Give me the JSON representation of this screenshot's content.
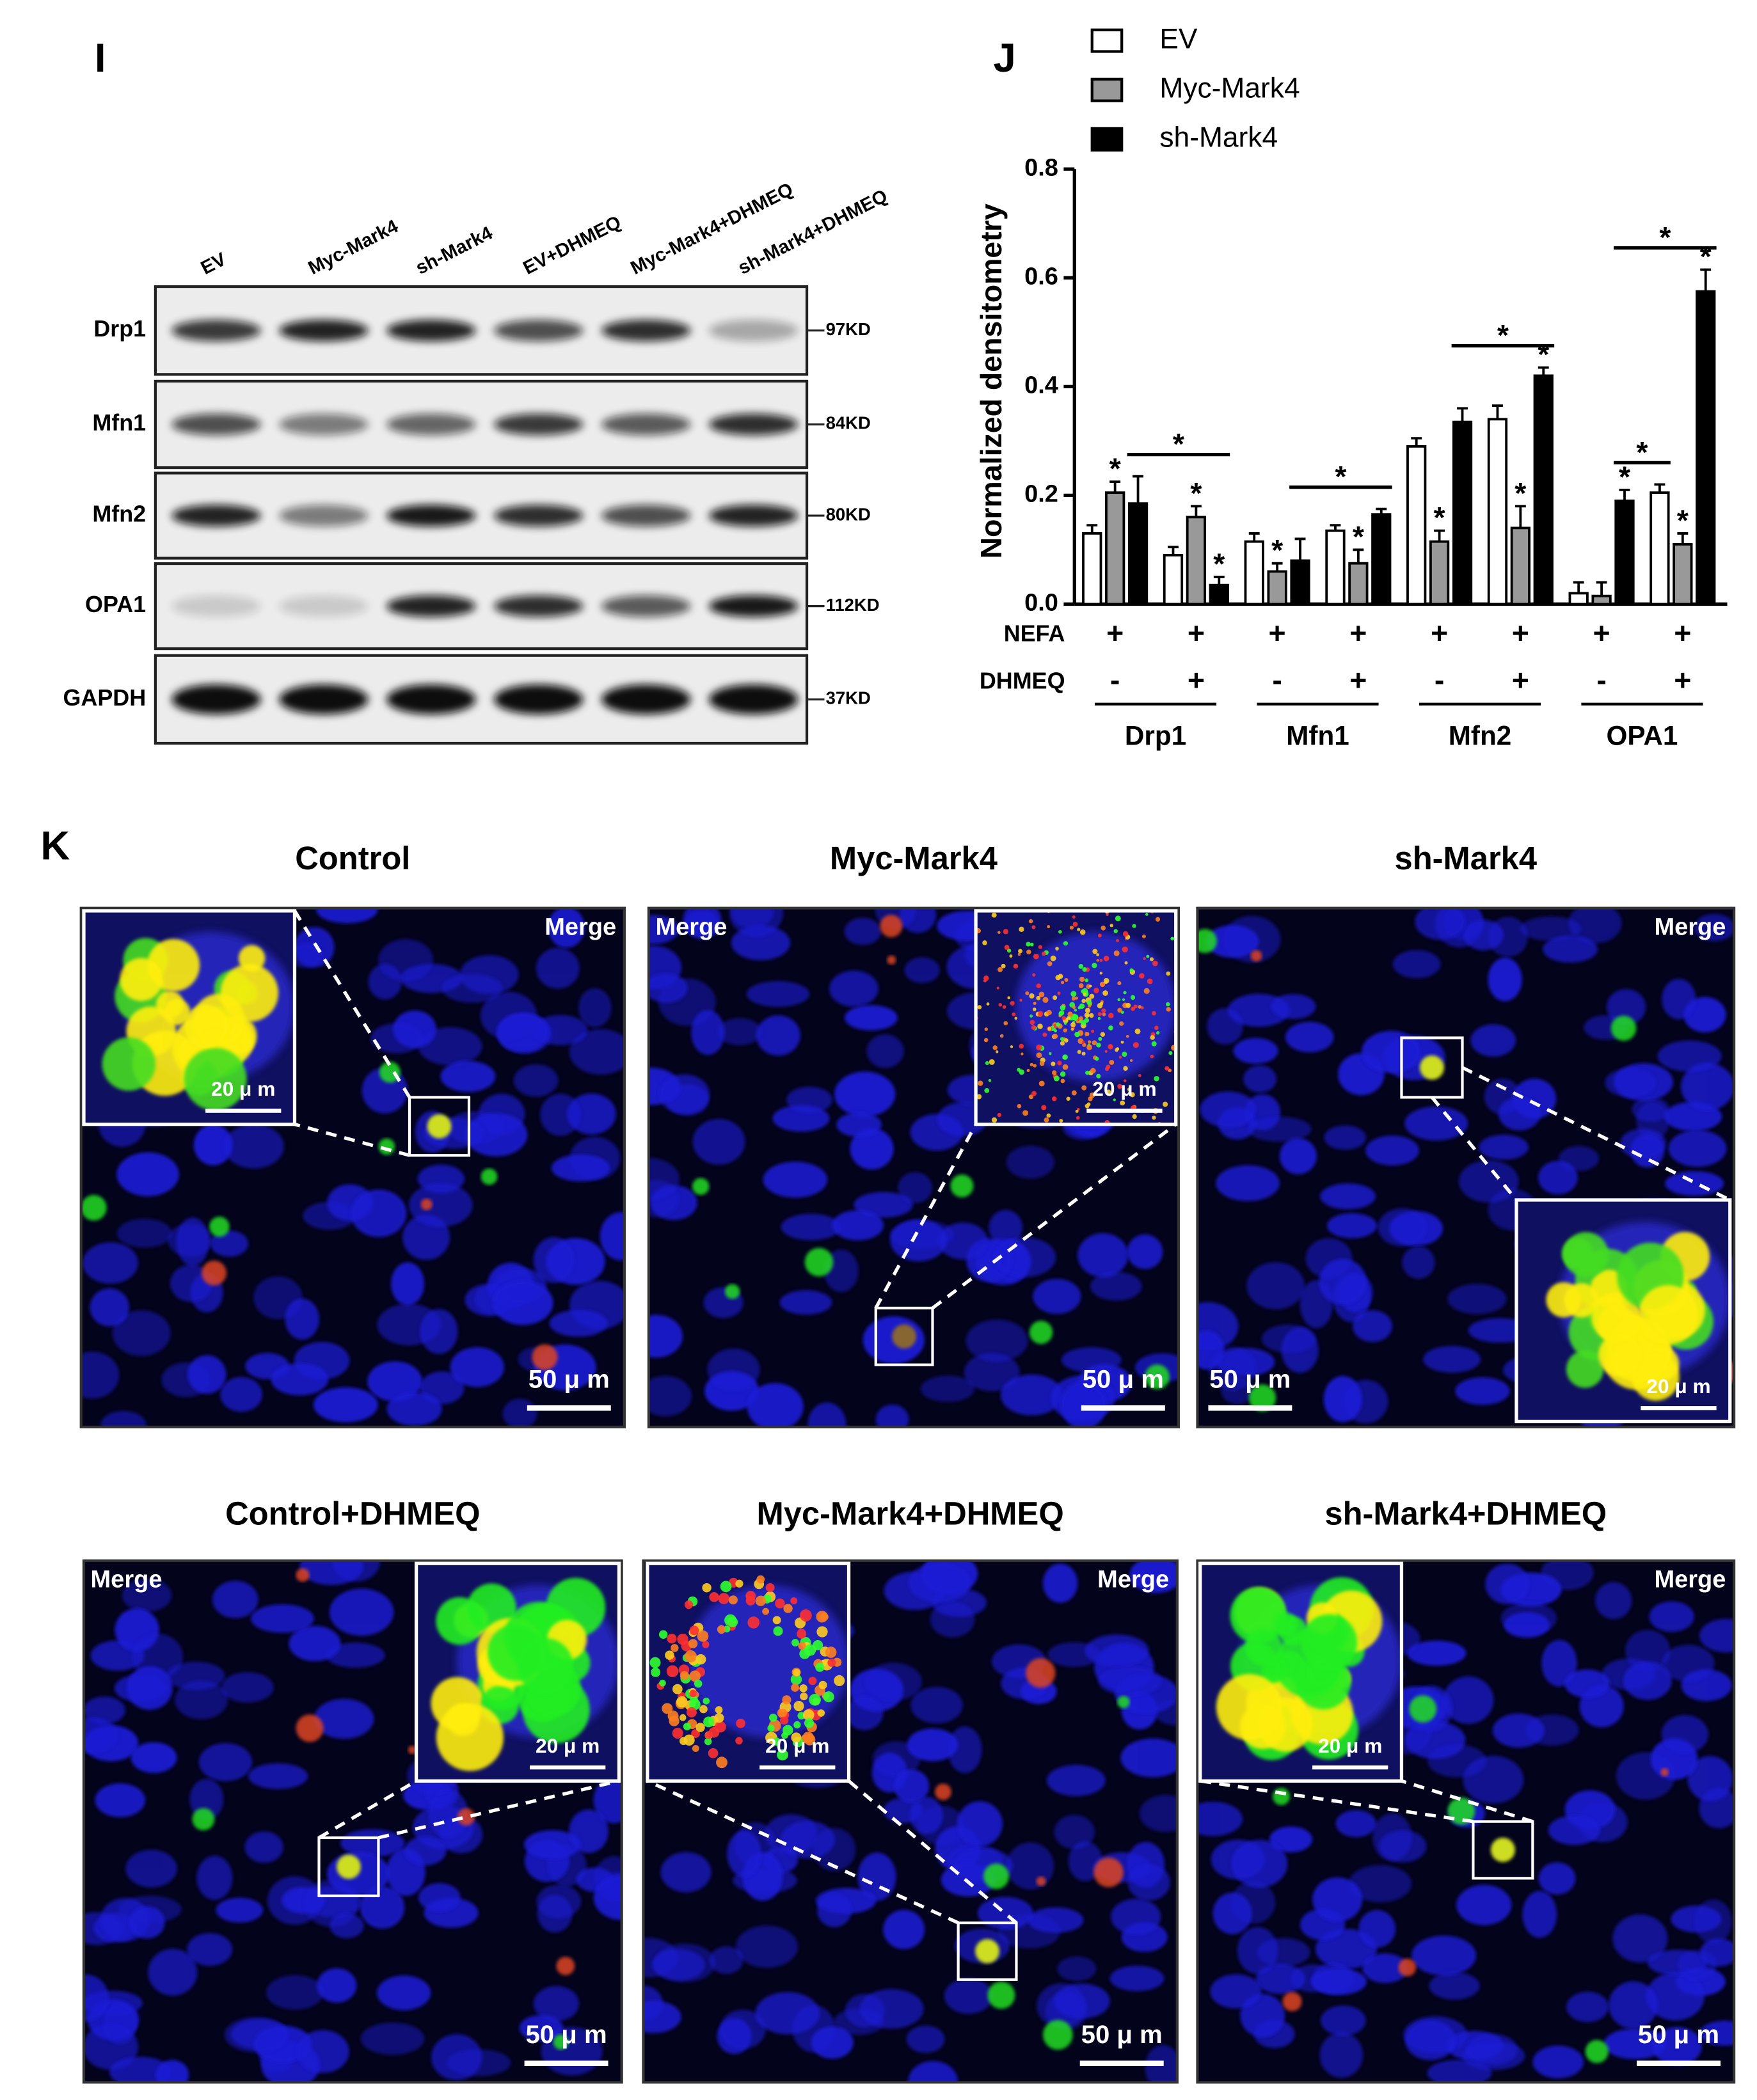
{
  "panel_labels": [
    "I",
    "J",
    "K"
  ],
  "western_blot": {
    "lanes": [
      "EV",
      "Myc-Mark4",
      "sh-Mark4",
      "EV+DHMEQ",
      "Myc-Mark4+DHMEQ",
      "sh-Mark4+DHMEQ"
    ],
    "proteins": [
      {
        "name": "Drp1",
        "size": "97KD"
      },
      {
        "name": "Mfn1",
        "size": "84KD"
      },
      {
        "name": "Mfn2",
        "size": "80KD"
      },
      {
        "name": "OPA1",
        "size": "112KD"
      },
      {
        "name": "GAPDH",
        "size": "37KD"
      }
    ]
  },
  "chart_data": {
    "type": "bar",
    "ylabel": "Normalized densitometry",
    "ylim": [
      0,
      0.8
    ],
    "yticks": [
      {
        "value": 0,
        "label": "0.0"
      },
      0.2,
      0.4,
      0.6,
      0.8
    ],
    "legend": "top-left",
    "series": [
      {
        "name": "EV",
        "color": "#ffffff",
        "values": [
          0.13,
          0.09,
          0.115,
          0.135,
          0.29,
          0.34,
          0.02,
          0.205
        ],
        "errors": [
          0.015,
          0.015,
          0.015,
          0.01,
          0.015,
          0.025,
          0.02,
          0.015
        ]
      },
      {
        "name": "Myc-Mark4",
        "color": "#999999",
        "values": [
          0.205,
          0.16,
          0.06,
          0.075,
          0.115,
          0.14,
          0.015,
          0.11
        ],
        "errors": [
          0.02,
          0.02,
          0.015,
          0.025,
          0.02,
          0.04,
          0.025,
          0.02
        ]
      },
      {
        "name": "sh-Mark4",
        "color": "#000000",
        "values": [
          0.185,
          0.035,
          0.08,
          0.165,
          0.335,
          0.42,
          0.19,
          0.575
        ],
        "errors": [
          0.05,
          0.015,
          0.04,
          0.01,
          0.025,
          0.015,
          0.02,
          0.04
        ]
      }
    ],
    "condition_rows": [
      {
        "name": "NEFA",
        "values": [
          "+",
          "+",
          "+",
          "+",
          "+",
          "+",
          "+",
          "+"
        ]
      },
      {
        "name": "DHMEQ",
        "values": [
          "-",
          "+",
          "-",
          "+",
          "-",
          "+",
          "-",
          "+"
        ]
      }
    ],
    "groups": [
      "Drp1",
      "Mfn1",
      "Mfn2",
      "OPA1"
    ],
    "significance": {
      "label": "*",
      "marks": [
        [
          0,
          1
        ],
        [
          1,
          1
        ],
        [
          1,
          2
        ],
        [
          2,
          1
        ],
        [
          3,
          1
        ],
        [
          4,
          1
        ],
        [
          5,
          1
        ],
        [
          5,
          2
        ],
        [
          6,
          2
        ],
        [
          7,
          1
        ],
        [
          7,
          2
        ]
      ],
      "brackets": [
        [
          0,
          2,
          1,
          2
        ],
        [
          2,
          2,
          3,
          2
        ],
        [
          4,
          2,
          5,
          2
        ],
        [
          6,
          2,
          7,
          0
        ],
        [
          6,
          2,
          7,
          2
        ]
      ]
    }
  },
  "microscopy": {
    "panels": [
      {
        "title": "Control",
        "channel": "Merge",
        "scale_bar": "50 μ m",
        "inset_scale_bar": "20 μ m"
      },
      {
        "title": "Myc-Mark4",
        "channel": "Merge",
        "scale_bar": "50 μ m",
        "inset_scale_bar": "20 μ m"
      },
      {
        "title": "sh-Mark4",
        "channel": "Merge",
        "scale_bar": "50 μ m",
        "inset_scale_bar": "20 μ m"
      },
      {
        "title": "Control+DHMEQ",
        "channel": "Merge",
        "scale_bar": "50 μ m",
        "inset_scale_bar": "20 μ m"
      },
      {
        "title": "Myc-Mark4+DHMEQ",
        "channel": "Merge",
        "scale_bar": "50 μ m",
        "inset_scale_bar": "20 μ m"
      },
      {
        "title": "sh-Mark4+DHMEQ",
        "channel": "Merge",
        "scale_bar": "50 μ m",
        "inset_scale_bar": "20 μ m"
      }
    ]
  }
}
